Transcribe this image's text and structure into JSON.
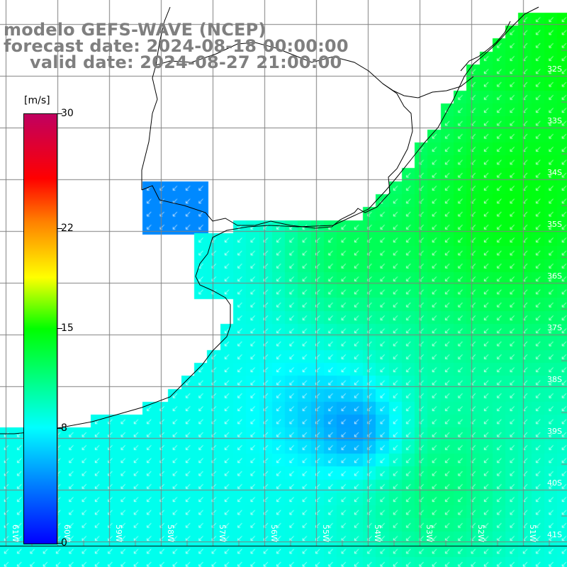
{
  "title": {
    "line1": "modelo GEFS-WAVE (NCEP)",
    "line2": "forecast date: 2024-08-18 00:00:00",
    "line3": "valid date: 2024-08-27 21:00:00"
  },
  "colorbar": {
    "unit": "[m/s]",
    "min": 0,
    "max": 30,
    "ticks": [
      "30",
      "22",
      "15",
      "8",
      "0"
    ],
    "tick_values": [
      30,
      22,
      15,
      8,
      0
    ]
  },
  "map": {
    "lat_labels": [
      "32S",
      "33S",
      "34S",
      "35S",
      "36S",
      "37S",
      "38S",
      "39S",
      "40S",
      "41S"
    ],
    "lon_labels": [
      "61W",
      "60W",
      "59W",
      "58W",
      "57W",
      "56W",
      "55W",
      "54W",
      "53W",
      "52W",
      "51W"
    ],
    "colors": {
      "land": "#ffffff",
      "grid": "#808080",
      "coast": "#000000",
      "arrows": "#ffffff",
      "weak_wind": "#0066ff",
      "moderate_wind": "#00ffff",
      "strong_wind": "#00ff00"
    }
  }
}
